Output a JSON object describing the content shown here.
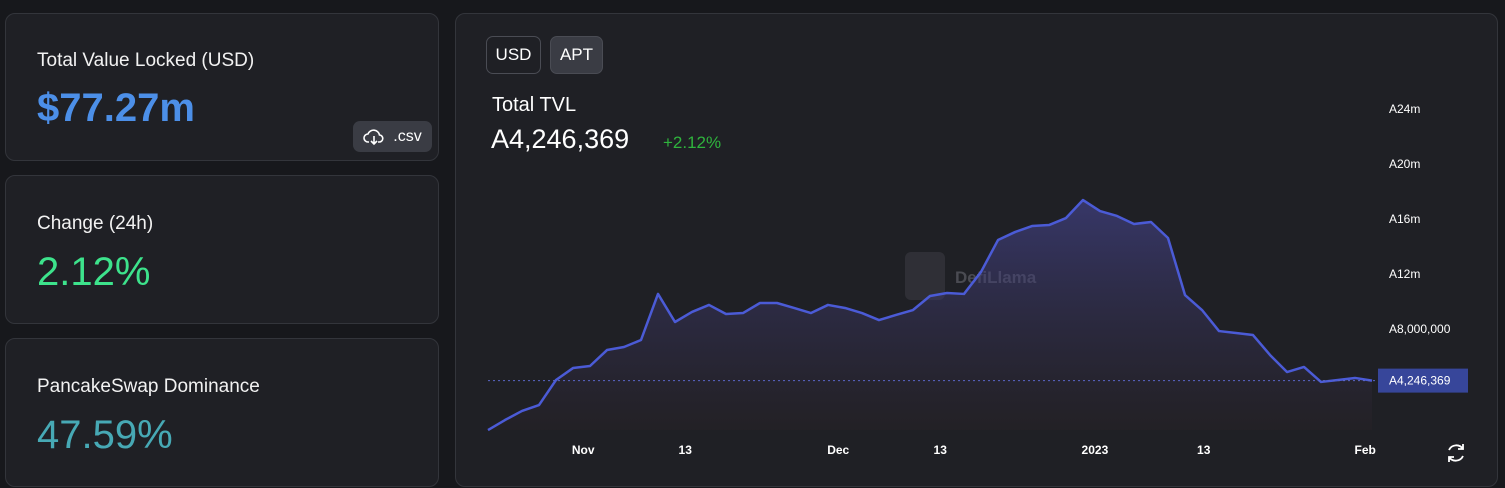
{
  "stats": [
    {
      "label": "Total Value Locked (USD)",
      "value": "$77.27m"
    },
    {
      "label": "Change (24h)",
      "value": "2.12%"
    },
    {
      "label": "PancakeSwap Dominance",
      "value": "47.59%"
    }
  ],
  "csv_button": ".csv",
  "toggle": [
    "USD",
    "APT"
  ],
  "watermark": "DefiLlama",
  "chart_data": {
    "type": "area",
    "title": "Total TVL",
    "headline": {
      "value": 4246369,
      "label": "A4,246,369"
    },
    "change": "+2.12%",
    "color": "#4b5bd6",
    "values": [
      650000,
      1380000,
      2040000,
      2470000,
      4290000,
      5160000,
      5310000,
      6470000,
      6690000,
      7200000,
      10550000,
      8510000,
      9240000,
      9750000,
      9090000,
      9160000,
      9890000,
      9890000,
      9530000,
      9160000,
      9750000,
      9530000,
      9160000,
      8650000,
      9020000,
      9380000,
      10400000,
      10620000,
      10550000,
      12150000,
      14470000,
      15050000,
      15490000,
      15560000,
      16070000,
      17380000,
      16580000,
      16220000,
      15640000,
      15780000,
      14620000,
      10470000,
      9380000,
      7850000,
      7710000,
      7560000,
      6110000,
      4870000,
      5240000,
      4150000,
      4290000,
      4440000,
      4246369
    ],
    "xlim": [
      0,
      52
    ],
    "xticks": [
      {
        "value": 5.6,
        "label": "Nov"
      },
      {
        "value": 11.6,
        "label": "13"
      },
      {
        "value": 20.6,
        "label": "Dec"
      },
      {
        "value": 26.6,
        "label": "13"
      },
      {
        "value": 35.7,
        "label": "2023"
      },
      {
        "value": 42.1,
        "label": "13"
      },
      {
        "value": 51.6,
        "label": "Feb"
      }
    ],
    "ylim": [
      0,
      24000000
    ],
    "yticks": [
      {
        "value": 8000000,
        "label": "A8,000,000"
      },
      {
        "value": 12000000,
        "label": "A12m"
      },
      {
        "value": 16000000,
        "label": "A16m"
      },
      {
        "value": 20000000,
        "label": "A20m"
      },
      {
        "value": 24000000,
        "label": "A24m"
      }
    ],
    "current": {
      "value": 4246369,
      "label": "A4,246,369"
    }
  }
}
